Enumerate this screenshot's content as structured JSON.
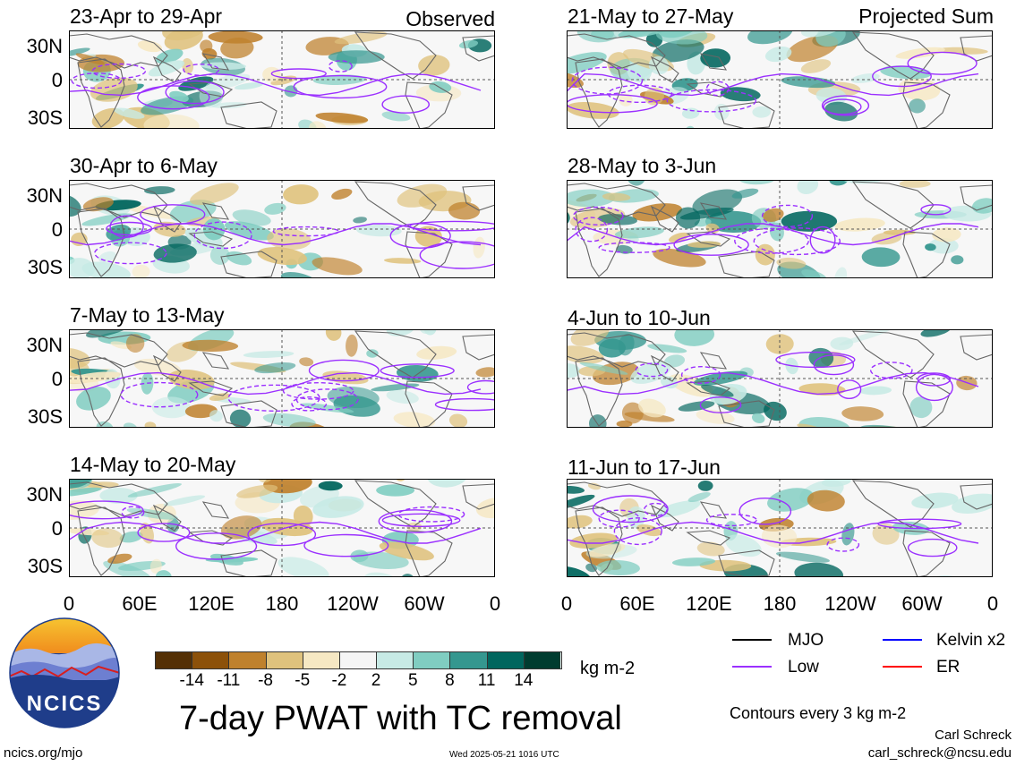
{
  "panels_left": [
    {
      "title": "23-Apr to 29-Apr",
      "tag": "Observed"
    },
    {
      "title": "30-Apr to 6-May",
      "tag": ""
    },
    {
      "title": "7-May to 13-May",
      "tag": ""
    },
    {
      "title": "14-May to 20-May",
      "tag": ""
    }
  ],
  "panels_right": [
    {
      "title": "21-May to 27-May",
      "tag": "Projected Sum"
    },
    {
      "title": "28-May to 3-Jun",
      "tag": ""
    },
    {
      "title": "4-Jun to 10-Jun",
      "tag": ""
    },
    {
      "title": "11-Jun to 17-Jun",
      "tag": ""
    }
  ],
  "lat_labels": [
    "30N",
    "0",
    "30S"
  ],
  "lon_labels": [
    "0",
    "60E",
    "120E",
    "180",
    "120W",
    "60W",
    "0"
  ],
  "colorbar": {
    "ticks": [
      "-14",
      "-11",
      "-8",
      "-5",
      "-2",
      "2",
      "5",
      "8",
      "11",
      "14"
    ],
    "units": "kg m-2",
    "colors": [
      "#543005",
      "#8c510a",
      "#bf812d",
      "#dfc27d",
      "#f6e8c3",
      "#f5f5f5",
      "#c7eae5",
      "#80cdc1",
      "#35978f",
      "#01665e",
      "#003c30"
    ]
  },
  "legend": [
    {
      "label": "MJO",
      "color": "#000000"
    },
    {
      "label": "Kelvin x2",
      "color": "#0000ff"
    },
    {
      "label": "Low",
      "color": "#9b30ff"
    },
    {
      "label": "ER",
      "color": "#ff0000"
    }
  ],
  "title": "7-day PWAT with TC removal",
  "contours_note": "Contours every 3 kg m-2",
  "author": "Carl Schreck",
  "email": "carl_schreck@ncsu.edu",
  "site": "ncics.org/mjo",
  "timestamp": "Wed 2025-05-21 1016 UTC",
  "logo": {
    "text": "NCICS"
  }
}
